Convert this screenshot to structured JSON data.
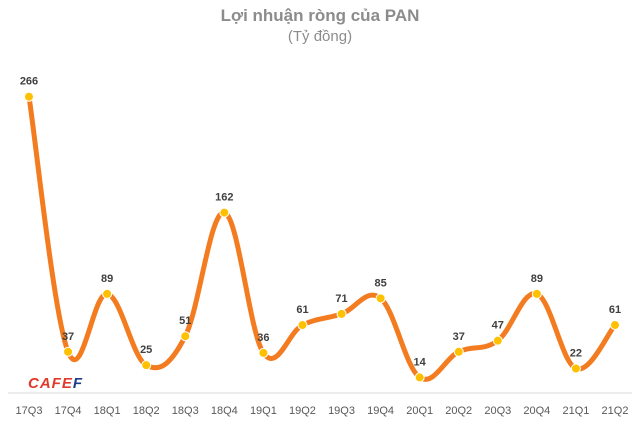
{
  "chart_data": {
    "type": "line",
    "title": "Lợi nhuận ròng của PAN",
    "subtitle": "(Tỷ đồng)",
    "categories": [
      "17Q3",
      "17Q4",
      "18Q1",
      "18Q2",
      "18Q3",
      "18Q4",
      "19Q1",
      "19Q2",
      "19Q3",
      "19Q4",
      "20Q1",
      "20Q2",
      "20Q3",
      "20Q4",
      "21Q1",
      "21Q2"
    ],
    "series": [
      {
        "values": [
          266,
          37,
          89,
          25,
          51,
          162,
          36,
          61,
          71,
          85,
          14,
          37,
          47,
          89,
          22,
          61
        ]
      }
    ],
    "ylim": [
      0,
      290
    ],
    "grid": false,
    "line_color": "#f47c20",
    "marker_color": "#ffc000",
    "label_color": "#404040",
    "tick_color": "#595959"
  },
  "logo": {
    "text_main": "CAFE",
    "text_tail": "F"
  }
}
